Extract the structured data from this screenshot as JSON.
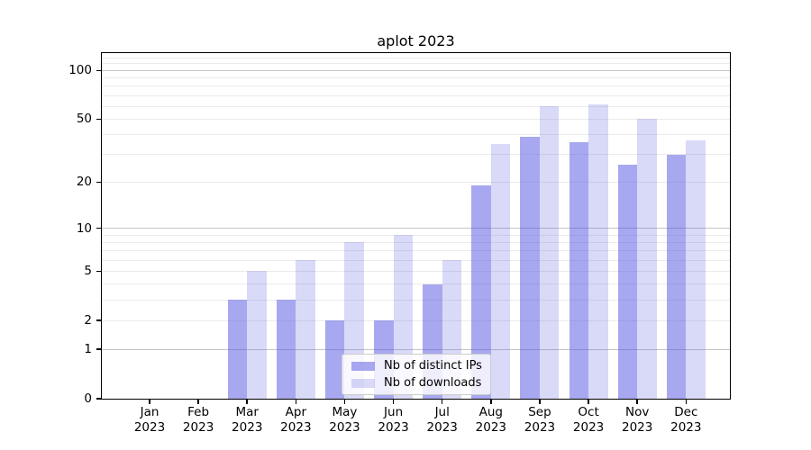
{
  "title": "aplot 2023",
  "chart_data": {
    "type": "bar",
    "title": "aplot 2023",
    "categories": [
      "Jan",
      "Feb",
      "Mar",
      "Apr",
      "May",
      "Jun",
      "Jul",
      "Aug",
      "Sep",
      "Oct",
      "Nov",
      "Dec"
    ],
    "year_label": "2023",
    "series": [
      {
        "name": "Nb of distinct IPs",
        "color": "rgba(81,81,225,0.5)",
        "values": [
          0,
          0,
          3,
          3,
          2,
          2,
          4,
          19,
          39,
          36,
          26,
          30
        ]
      },
      {
        "name": "Nb of downloads",
        "color": "rgba(81,81,225,0.22)",
        "values": [
          0,
          0,
          5,
          6,
          8,
          9,
          6,
          35,
          60,
          62,
          50,
          37
        ]
      }
    ],
    "y_scale": "log1p",
    "ylim": [
      0,
      128
    ],
    "y_ticks": [
      0,
      1,
      2,
      5,
      10,
      20,
      50,
      100
    ],
    "y_major_grid": [
      1,
      10,
      100
    ],
    "y_minor_grid": [
      2,
      3,
      4,
      5,
      6,
      7,
      8,
      9,
      20,
      30,
      40,
      50,
      60,
      70,
      80,
      90,
      110,
      120
    ],
    "xlabel": "",
    "ylabel": "",
    "grid": "on",
    "legend_position": "lower-center"
  },
  "colors": {
    "background": "#ffffff",
    "spine": "#000000",
    "grid_major": "#c4c4c4",
    "grid_minor": "#ebebeb",
    "bar_base": "#5151e1",
    "legend_bg": "rgba(255,255,255,0.8)",
    "legend_border": "#cccccc"
  }
}
